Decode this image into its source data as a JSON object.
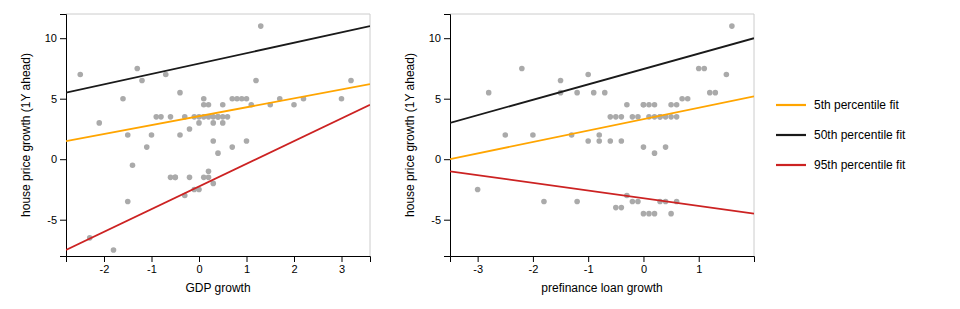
{
  "chart_data": [
    {
      "type": "scatter",
      "xlabel": "GDP growth",
      "ylabel": "house price growth (1Y ahead)",
      "xlim": [
        -2.8,
        3.6
      ],
      "ylim": [
        -8,
        12
      ],
      "xticks": [
        -2,
        -1,
        0,
        1,
        2,
        3
      ],
      "yticks": [
        -5,
        0,
        5,
        10
      ],
      "series": [
        {
          "type": "scatter",
          "color": "#AAAAAA",
          "x": [
            -2.5,
            -2.3,
            -1.8,
            -1.5,
            -1.4,
            -1.3,
            -1.2,
            -1.1,
            -1.0,
            -0.9,
            -0.8,
            -0.7,
            -0.6,
            -0.5,
            -0.4,
            -0.3,
            -0.2,
            -0.1,
            0.0,
            0.0,
            0.1,
            0.1,
            0.1,
            0.2,
            0.2,
            0.3,
            0.3,
            0.4,
            0.4,
            0.5,
            0.5,
            0.6,
            0.7,
            0.8,
            0.9,
            1.0,
            1.1,
            1.2,
            1.3,
            1.5,
            1.7,
            2.0,
            2.2,
            3.0,
            3.2,
            -1.5,
            -0.3,
            -0.1,
            0.2,
            0.3,
            0.4,
            -0.6,
            -0.5,
            0.0,
            0.1,
            0.2,
            -0.4,
            -0.2,
            0.3,
            0.5,
            0.7,
            1.0,
            -2.1,
            -1.6
          ],
          "values": [
            7.0,
            -6.5,
            -7.5,
            2.0,
            -0.5,
            7.5,
            6.5,
            1.0,
            2.0,
            3.5,
            3.5,
            7.0,
            3.5,
            -1.5,
            5.5,
            3.5,
            -1.5,
            3.5,
            3.0,
            3.5,
            3.5,
            4.5,
            5.0,
            3.5,
            4.5,
            3.0,
            3.5,
            3.5,
            3.5,
            3.5,
            4.5,
            3.5,
            5.0,
            5.0,
            5.0,
            5.0,
            4.5,
            6.5,
            11.0,
            4.5,
            5.0,
            4.5,
            5.0,
            5.0,
            6.5,
            -3.5,
            -3.0,
            -2.5,
            -1.5,
            -2.0,
            0.5,
            -1.5,
            -1.5,
            -2.5,
            -1.5,
            -1.0,
            2.0,
            2.5,
            1.5,
            3.0,
            1.0,
            1.5,
            3.0,
            5.0
          ]
        },
        {
          "type": "line",
          "color": "#FFA500",
          "x": [
            -2.8,
            3.6
          ],
          "values": [
            1.5,
            6.2
          ]
        },
        {
          "type": "line",
          "color": "#1a1a1a",
          "x": [
            -2.8,
            3.6
          ],
          "values": [
            5.5,
            11.0
          ]
        },
        {
          "type": "line",
          "color": "#CC2222",
          "x": [
            -2.8,
            3.6
          ],
          "values": [
            -7.5,
            4.5
          ]
        }
      ]
    },
    {
      "type": "scatter",
      "xlabel": "prefinance loan growth",
      "ylabel": "house price growth (1Y ahead)",
      "xlim": [
        -3.5,
        2.0
      ],
      "ylim": [
        -8,
        12
      ],
      "xticks": [
        -3,
        -2,
        -1,
        0,
        1
      ],
      "yticks": [
        -5,
        0,
        5,
        10
      ],
      "legend": "right",
      "series": [
        {
          "type": "scatter",
          "color": "#AAAAAA",
          "x": [
            -3.0,
            -2.8,
            -2.5,
            -2.2,
            -2.0,
            -1.8,
            -1.5,
            -1.3,
            -1.2,
            -1.0,
            -0.9,
            -0.8,
            -0.7,
            -0.6,
            -0.5,
            -0.4,
            -0.3,
            -0.2,
            -0.1,
            0.0,
            0.0,
            0.1,
            0.1,
            0.2,
            0.2,
            0.3,
            0.3,
            0.4,
            0.5,
            0.5,
            0.6,
            0.6,
            0.7,
            0.8,
            1.0,
            1.1,
            1.2,
            1.3,
            1.5,
            1.6,
            -0.5,
            -0.4,
            -0.3,
            -0.2,
            -0.1,
            0.0,
            0.1,
            0.2,
            0.3,
            0.4,
            0.5,
            0.6,
            -1.5,
            -1.2,
            -1.0,
            -0.8,
            -0.6,
            -0.4,
            0.0,
            0.2,
            0.4
          ],
          "values": [
            -2.5,
            5.5,
            2.0,
            7.5,
            2.0,
            -3.5,
            5.5,
            2.0,
            -3.5,
            7.0,
            5.5,
            2.0,
            5.5,
            3.5,
            3.5,
            3.5,
            4.5,
            3.5,
            3.5,
            4.5,
            4.5,
            4.5,
            3.5,
            3.5,
            4.5,
            3.5,
            3.5,
            3.5,
            3.5,
            4.5,
            3.5,
            4.5,
            5.0,
            5.0,
            7.5,
            7.5,
            5.5,
            5.5,
            7.0,
            11.0,
            -4.0,
            -4.0,
            -3.0,
            -3.5,
            -3.5,
            -4.5,
            -4.5,
            -4.5,
            -3.5,
            -3.5,
            -4.5,
            -3.5,
            6.5,
            5.5,
            1.5,
            1.5,
            1.5,
            1.5,
            1.0,
            0.5,
            1.0
          ]
        },
        {
          "type": "line",
          "name": "5th percentile fit",
          "color": "#FFA500",
          "x": [
            -3.5,
            2.0
          ],
          "values": [
            0.0,
            5.2
          ]
        },
        {
          "type": "line",
          "name": "50th percentile fit",
          "color": "#1a1a1a",
          "x": [
            -3.5,
            2.0
          ],
          "values": [
            3.0,
            10.0
          ]
        },
        {
          "type": "line",
          "name": "95th percentile fit",
          "color": "#CC2222",
          "x": [
            -3.5,
            2.0
          ],
          "values": [
            -1.0,
            -4.5
          ]
        }
      ]
    }
  ]
}
